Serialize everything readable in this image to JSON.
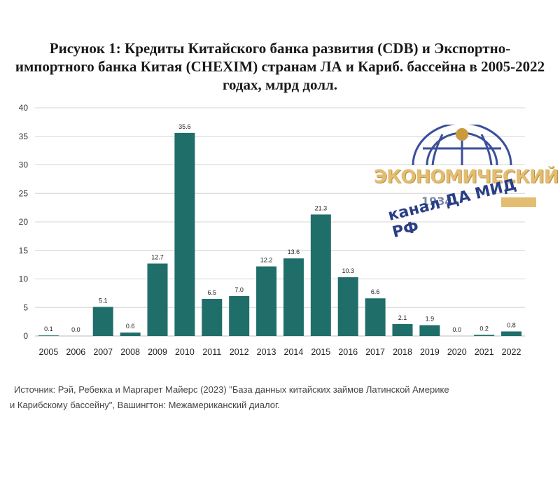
{
  "title": "Рисунок 1: Кредиты Китайского банка развития (CDB) и Экспортно-импортного банка Китая (CHEXIM) странам ЛА и Кариб. бассейна в 2005-2022 годах, млрд долл.",
  "chart_data": {
    "type": "bar",
    "title": "Рисунок 1: Кредиты Китайского банка развития (CDB) и Экспортно-импортного банка Китая (CHEXIM) странам ЛА и Кариб. бассейна в 2005-2022 годах, млрд долл.",
    "categories": [
      "2005",
      "2006",
      "2007",
      "2008",
      "2009",
      "2010",
      "2011",
      "2012",
      "2013",
      "2014",
      "2015",
      "2016",
      "2017",
      "2018",
      "2019",
      "2020",
      "2021",
      "2022"
    ],
    "values": [
      0.1,
      0.0,
      5.1,
      0.6,
      12.7,
      35.6,
      6.5,
      7.0,
      12.2,
      13.6,
      21.3,
      10.3,
      6.6,
      2.1,
      1.9,
      0.0,
      0.2,
      0.8
    ],
    "data_labels": [
      "0.1",
      "0.0",
      "5.1",
      "0.6",
      "12.7",
      "35.6",
      "6.5",
      "7.0",
      "12.2",
      "13.6",
      "21.3",
      "10.3",
      "6.6",
      "2.1",
      "1.9",
      "0.0",
      "0.2",
      "0.8"
    ],
    "ylim": [
      0,
      40
    ],
    "yticks": [
      0,
      5,
      10,
      15,
      20,
      25,
      30,
      35,
      40
    ],
    "grid": true,
    "bar_color": "#1f6e6a",
    "grid_color": "#d4d4d4"
  },
  "source": {
    "line1": "Источник: Рэй, Ребекка и Маргарет Майерс (2023) \"База данных китайских займов Латинской Америке",
    "line2": "и Карибскому бассейну\", Вашингтон: Межамериканский диалог."
  },
  "watermark": {
    "word": "ЭКОНОМИЧЕСКИЙ",
    "year": "1934",
    "subtitle": "канал ДА МИД РФ"
  }
}
